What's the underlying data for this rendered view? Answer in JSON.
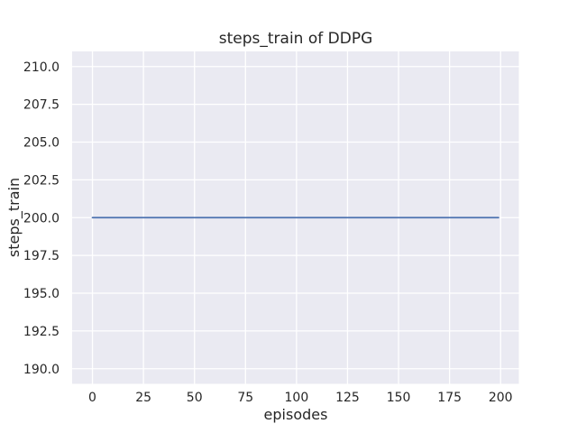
{
  "chart_data": {
    "type": "line",
    "title": "steps_train of DDPG",
    "xlabel": "episodes",
    "ylabel": "steps_train",
    "xlim": [
      -9.95,
      208.95
    ],
    "ylim": [
      189.0,
      211.0
    ],
    "x_ticks": [
      0,
      25,
      50,
      75,
      100,
      125,
      150,
      175,
      200
    ],
    "x_tick_labels": [
      "0",
      "25",
      "50",
      "75",
      "100",
      "125",
      "150",
      "175",
      "200"
    ],
    "y_ticks": [
      190.0,
      192.5,
      195.0,
      197.5,
      200.0,
      202.5,
      205.0,
      207.5,
      210.0
    ],
    "y_tick_labels": [
      "190.0",
      "192.5",
      "195.0",
      "197.5",
      "200.0",
      "202.5",
      "205.0",
      "207.5",
      "210.0"
    ],
    "grid": true,
    "legend_position": "none",
    "series": [
      {
        "name": "steps_train",
        "color": "#4c72b0",
        "x": [
          0,
          199
        ],
        "y": [
          200,
          200
        ],
        "constant_value": 200,
        "x_range": [
          0,
          199
        ]
      }
    ],
    "colors": {
      "figure_background": "#ffffff",
      "axes_background": "#eaeaf2",
      "gridline": "#ffffff",
      "line": "#4c72b0",
      "text": "#262626"
    }
  }
}
